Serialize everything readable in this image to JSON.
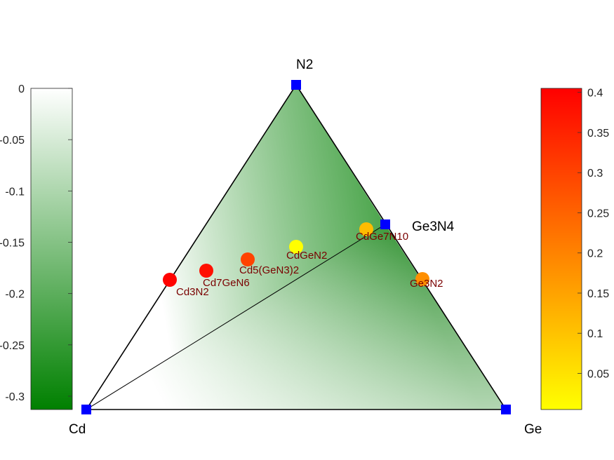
{
  "chart_data": {
    "type": "scatter",
    "vertices": {
      "top": "N2",
      "left": "Cd",
      "right": "Ge"
    },
    "extra_hull_point": "Ge3N4",
    "phases": [
      {
        "name": "Cd3N2",
        "value": 0.4
      },
      {
        "name": "Cd7GeN6",
        "value": 0.38
      },
      {
        "name": "Cd5(GeN3)2",
        "value": 0.3
      },
      {
        "name": "CdGeN2",
        "value": 0.0
      },
      {
        "name": "CdGe7N10",
        "value": 0.11
      },
      {
        "name": "Ge3N2",
        "value": 0.18
      }
    ],
    "left_colorbar": {
      "ticks": [
        "0",
        "-0.05",
        "-0.1",
        "-0.15",
        "-0.2",
        "-0.25",
        "-0.3"
      ],
      "min": -0.313,
      "max": 0,
      "colors": [
        "#ffffff",
        "#008000"
      ]
    },
    "right_colorbar": {
      "ticks": [
        "0.05",
        "0.1",
        "0.15",
        "0.2",
        "0.25",
        "0.3",
        "0.35",
        "0.4"
      ],
      "min": 0.005,
      "max": 0.405,
      "colors": [
        "#ffff00",
        "#ff0000"
      ]
    }
  }
}
